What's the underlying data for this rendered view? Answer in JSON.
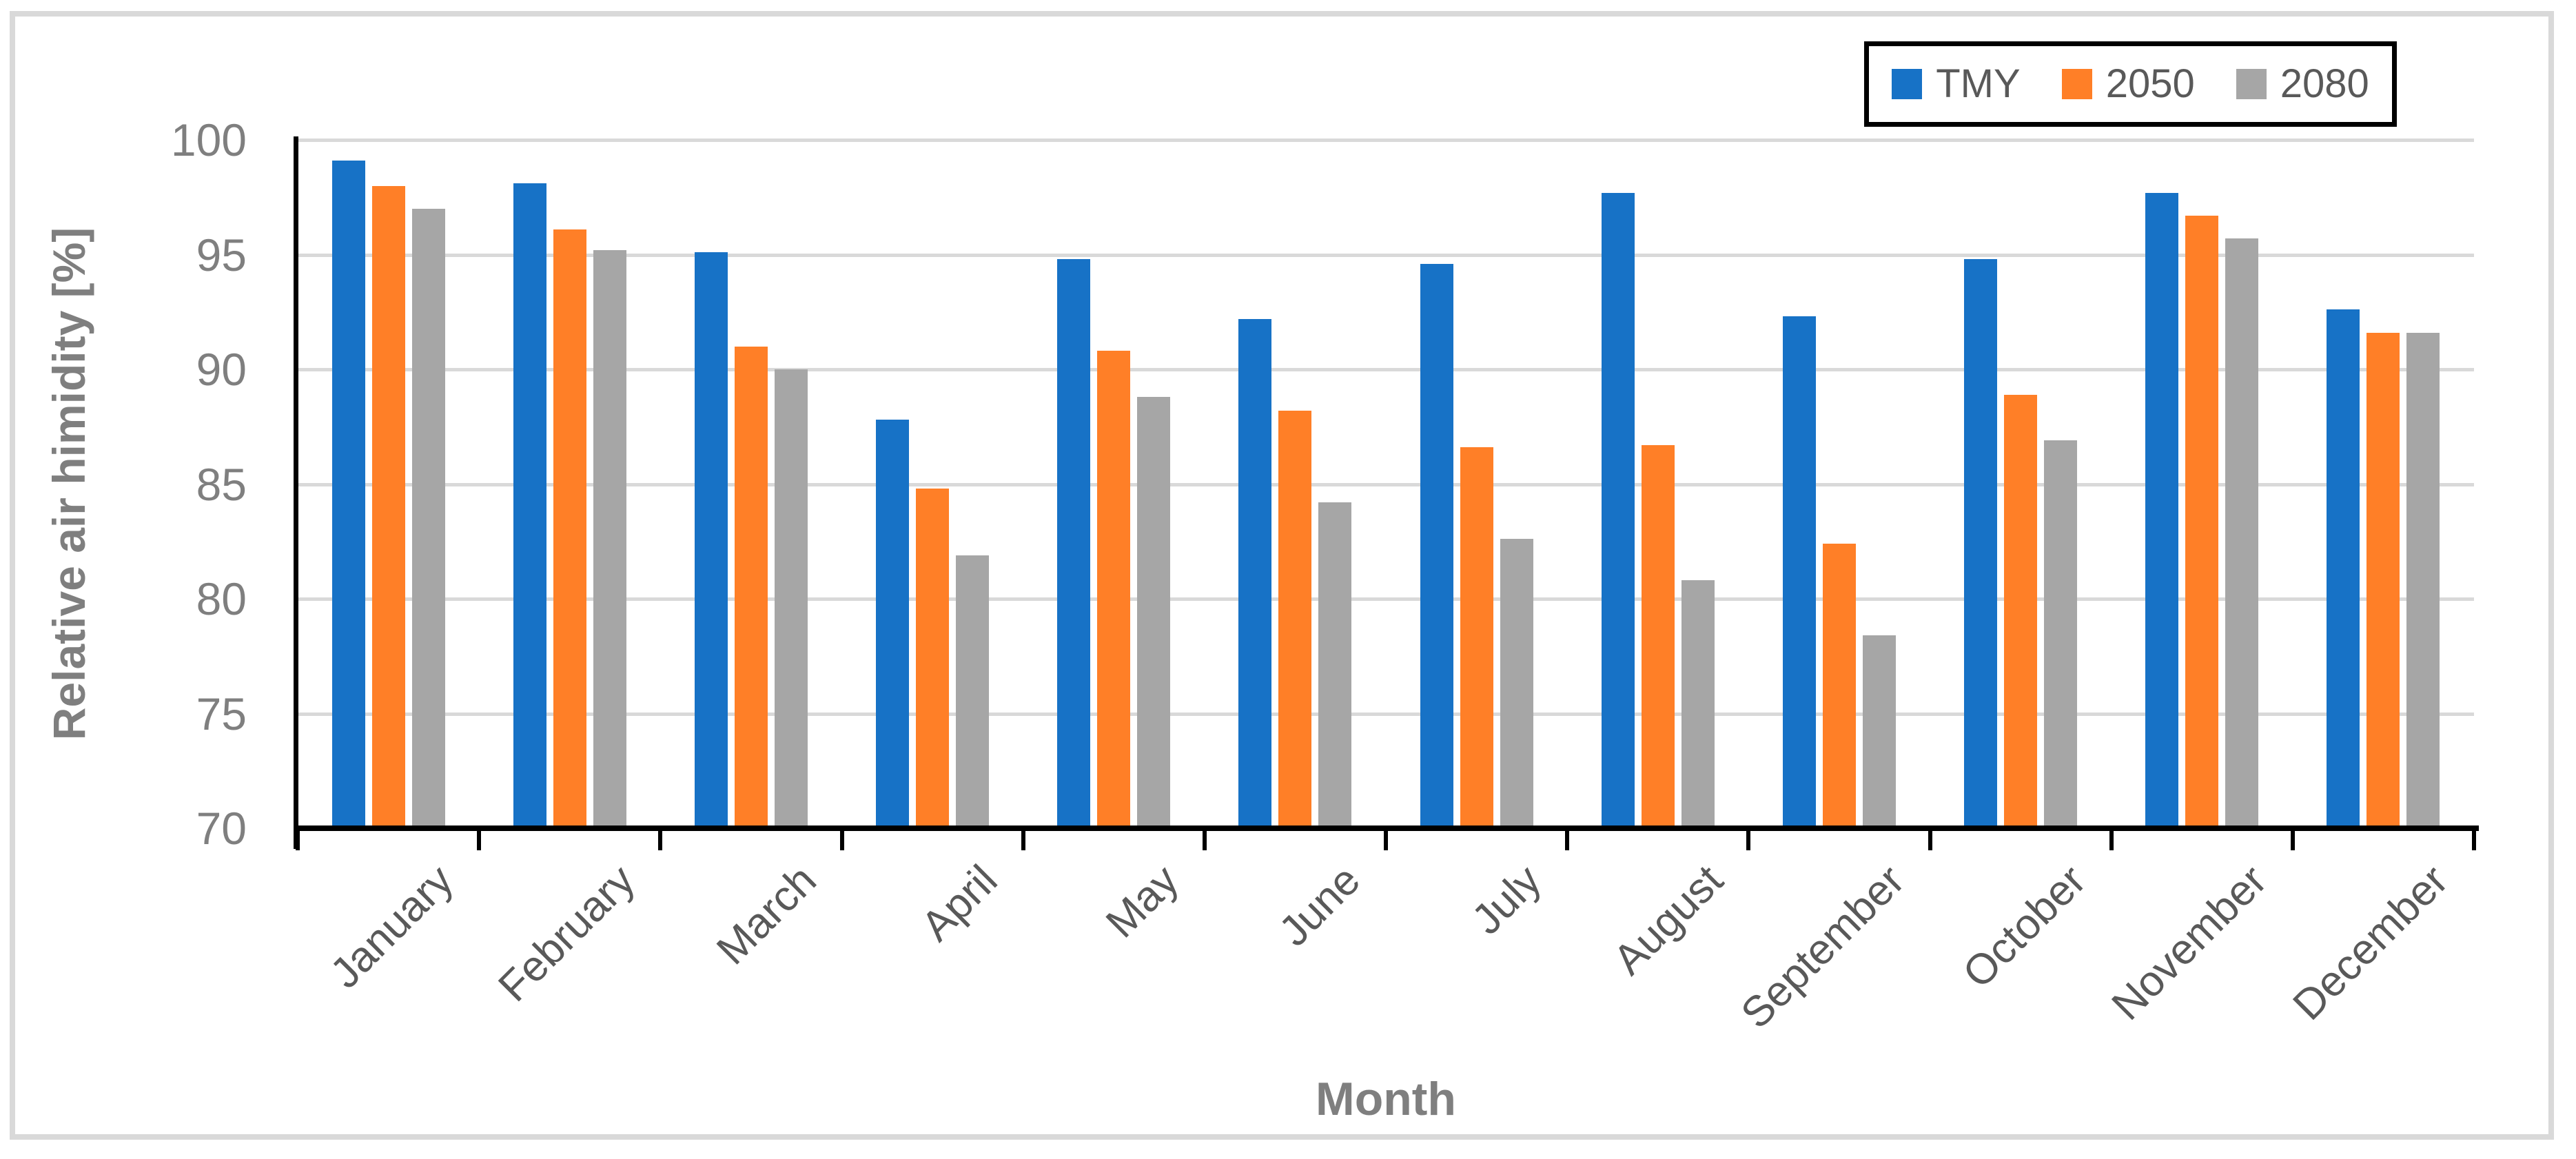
{
  "figure": {
    "background_color": "#FFFFFF",
    "border_color": "#D9D9D9"
  },
  "chart_data": {
    "type": "bar",
    "title": "",
    "xlabel": "Month",
    "ylabel": "Relative air himidity [%]",
    "ylim": [
      70,
      100
    ],
    "yticks": [
      70,
      75,
      80,
      85,
      90,
      95,
      100
    ],
    "grid": true,
    "legend_position": "top-right",
    "categories": [
      "January",
      "February",
      "March",
      "April",
      "May",
      "June",
      "July",
      "August",
      "September",
      "October",
      "November",
      "December"
    ],
    "series": [
      {
        "name": "TMY",
        "color": "#1772C6",
        "values": [
          99.1,
          98.1,
          95.1,
          87.8,
          94.8,
          92.2,
          94.6,
          97.7,
          92.3,
          94.8,
          97.7,
          92.6
        ]
      },
      {
        "name": "2050",
        "color": "#FF7F27",
        "values": [
          98.0,
          96.1,
          91.0,
          84.8,
          90.8,
          88.2,
          86.6,
          86.7,
          82.4,
          88.9,
          96.7,
          91.6
        ]
      },
      {
        "name": "2080",
        "color": "#A6A6A6",
        "values": [
          97.0,
          95.2,
          90.0,
          81.9,
          88.8,
          84.2,
          82.6,
          80.8,
          78.4,
          86.9,
          95.7,
          91.6
        ]
      }
    ],
    "axis_color": "#000000",
    "gridline_color": "#D9D9D9",
    "tick_label_color": "#7F7F7F",
    "category_label_color": "#595959",
    "legend_text_color": "#595959"
  }
}
